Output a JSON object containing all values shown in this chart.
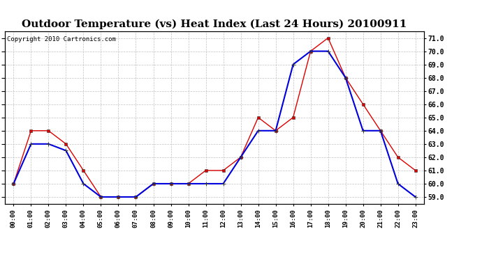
{
  "title": "Outdoor Temperature (vs) Heat Index (Last 24 Hours) 20100911",
  "copyright": "Copyright 2010 Cartronics.com",
  "x_labels": [
    "00:00",
    "01:00",
    "02:00",
    "03:00",
    "04:00",
    "05:00",
    "06:00",
    "07:00",
    "08:00",
    "09:00",
    "10:00",
    "11:00",
    "12:00",
    "13:00",
    "14:00",
    "15:00",
    "16:00",
    "17:00",
    "18:00",
    "19:00",
    "20:00",
    "21:00",
    "22:00",
    "23:00"
  ],
  "temp_blue": [
    60.0,
    63.0,
    63.0,
    62.5,
    60.0,
    59.0,
    59.0,
    59.0,
    60.0,
    60.0,
    60.0,
    60.0,
    60.0,
    62.0,
    64.0,
    64.0,
    69.0,
    70.0,
    70.0,
    68.0,
    64.0,
    64.0,
    60.0,
    59.0
  ],
  "heat_red": [
    60.0,
    64.0,
    64.0,
    63.0,
    61.0,
    59.0,
    59.0,
    59.0,
    60.0,
    60.0,
    60.0,
    61.0,
    61.0,
    62.0,
    65.0,
    64.0,
    65.0,
    70.0,
    71.0,
    68.0,
    66.0,
    64.0,
    62.0,
    61.0
  ],
  "ylim": [
    58.5,
    71.5
  ],
  "yticks": [
    59.0,
    60.0,
    61.0,
    62.0,
    63.0,
    64.0,
    65.0,
    66.0,
    67.0,
    68.0,
    69.0,
    70.0,
    71.0
  ],
  "blue_color": "#0000dd",
  "red_color": "#dd0000",
  "bg_color": "#ffffff",
  "plot_bg": "#ffffff",
  "grid_color": "#bbbbbb",
  "title_fontsize": 11,
  "copyright_fontsize": 6.5
}
